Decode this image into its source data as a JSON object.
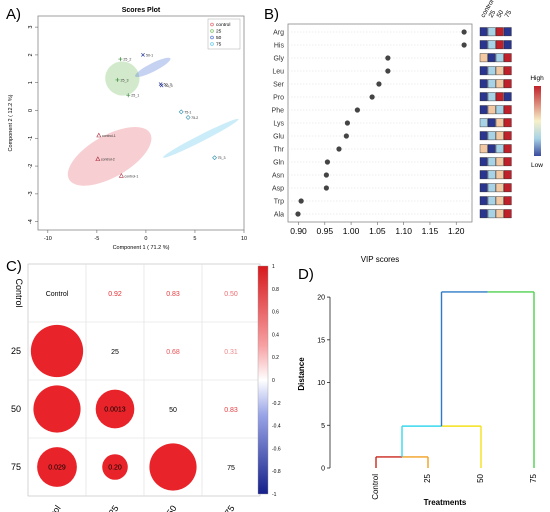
{
  "panels": {
    "a": {
      "letter": "A)"
    },
    "b": {
      "letter": "B)"
    },
    "c": {
      "letter": "C)"
    },
    "d": {
      "letter": "D)"
    }
  },
  "colors": {
    "control": "#e8737a",
    "g25": "#7ec46b",
    "g50": "#5c7fd6",
    "g75": "#69c8ee",
    "vip_high": "#c0202a",
    "vip_mid": "#f3c9a4",
    "vip_low_light": "#a8d3e6",
    "vip_low": "#2a3590",
    "corr_pos": "#e8242a",
    "corr_neg": "#1d2ea0",
    "dend_red": "#c8261c",
    "dend_orange": "#f0a020",
    "dend_yellow": "#f4e11a",
    "dend_cyan": "#38d8ee",
    "dend_blue": "#2e7ac6",
    "dend_green": "#4fd04f"
  },
  "chart_data": [
    {
      "id": "scores",
      "type": "scatter",
      "title": "Scores Plot",
      "xlabel": "Component 1 ( 71.2 %)",
      "ylabel": "Component 2 ( 12.2 %)",
      "xlim": [
        -11,
        10
      ],
      "ylim": [
        -4.3,
        3.4
      ],
      "xticks": [
        -10,
        -5,
        0,
        5,
        10
      ],
      "yticks": [
        -4,
        -3,
        -2,
        -1,
        0,
        1,
        2,
        3
      ],
      "legend": {
        "position": "top-right",
        "entries": [
          "control",
          "25",
          "50",
          "75"
        ]
      },
      "series": [
        {
          "name": "control",
          "color_key": "control",
          "marker": "triangle",
          "points": [
            {
              "x": -4.8,
              "y": -0.9,
              "label": "control-1"
            },
            {
              "x": -4.9,
              "y": -1.75,
              "label": "control-2"
            },
            {
              "x": -2.5,
              "y": -2.35,
              "label": "control-1"
            }
          ]
        },
        {
          "name": "25",
          "color_key": "g25",
          "marker": "plus",
          "points": [
            {
              "x": -2.6,
              "y": 1.85,
              "label": "25_2"
            },
            {
              "x": -2.9,
              "y": 1.1,
              "label": "25_3"
            },
            {
              "x": -1.8,
              "y": 0.55,
              "label": "25_1"
            }
          ]
        },
        {
          "name": "50",
          "color_key": "g50",
          "marker": "cross",
          "points": [
            {
              "x": -0.3,
              "y": 2.0,
              "label": "50-1"
            },
            {
              "x": 1.5,
              "y": 0.95,
              "label": "50_2"
            },
            {
              "x": 1.6,
              "y": 0.9,
              "label": "50_3"
            }
          ]
        },
        {
          "name": "75",
          "color_key": "g75",
          "marker": "diamond",
          "points": [
            {
              "x": 3.6,
              "y": -0.05,
              "label": "75-1"
            },
            {
              "x": 4.3,
              "y": -0.25,
              "label": "75-2"
            },
            {
              "x": 7.0,
              "y": -1.7,
              "label": "75_3"
            }
          ]
        }
      ]
    },
    {
      "id": "vip",
      "type": "scatter",
      "xlabel": "VIP scores",
      "xlim": [
        0.88,
        1.23
      ],
      "xticks": [
        0.9,
        0.95,
        1.0,
        1.05,
        1.1,
        1.15,
        1.2
      ],
      "categories": [
        "Arg",
        "His",
        "Gly",
        "Leu",
        "Ser",
        "Pro",
        "Phe",
        "Lys",
        "Glu",
        "Thr",
        "Gln",
        "Asn",
        "Asp",
        "Trp",
        "Ala"
      ],
      "values": [
        1.215,
        1.215,
        1.07,
        1.07,
        1.053,
        1.04,
        1.012,
        0.993,
        0.991,
        0.977,
        0.955,
        0.953,
        0.953,
        0.905,
        0.899
      ],
      "heatmap": {
        "columns": [
          "control",
          "25",
          "50",
          "75"
        ],
        "cells": [
          [
            "low",
            "lowlight",
            "high",
            "low"
          ],
          [
            "low",
            "lowlight",
            "high",
            "low"
          ],
          [
            "mid",
            "low",
            "lowlight",
            "high"
          ],
          [
            "low",
            "lowlight",
            "mid",
            "high"
          ],
          [
            "low",
            "lowlight",
            "mid",
            "high"
          ],
          [
            "low",
            "lowlight",
            "high",
            "low"
          ],
          [
            "low",
            "mid",
            "lowlight",
            "high"
          ],
          [
            "lowlight",
            "low",
            "mid",
            "high"
          ],
          [
            "low",
            "lowlight",
            "mid",
            "high"
          ],
          [
            "mid",
            "low",
            "lowlight",
            "high"
          ],
          [
            "low",
            "lowlight",
            "mid",
            "high"
          ],
          [
            "low",
            "lowlight",
            "mid",
            "high"
          ],
          [
            "low",
            "lowlight",
            "mid",
            "high"
          ],
          [
            "low",
            "lowlight",
            "mid",
            "high"
          ],
          [
            "low",
            "lowlight",
            "mid",
            "high"
          ]
        ],
        "colorbar": {
          "high": "High",
          "low": "Low"
        }
      }
    },
    {
      "id": "corr",
      "type": "heatmap",
      "labels": [
        "Control",
        "25",
        "50",
        "75"
      ],
      "matrix": [
        [
          1,
          0.92,
          0.83,
          0.5
        ],
        [
          0.92,
          1,
          0.68,
          0.31
        ],
        [
          0.83,
          0.68,
          1,
          0.83
        ],
        [
          0.5,
          0.31,
          0.83,
          1
        ]
      ],
      "lower_labels": [
        [
          null,
          null,
          null,
          null
        ],
        [
          "",
          null,
          null,
          null
        ],
        [
          "",
          "0.0013",
          null,
          null
        ],
        [
          "0.029",
          "0.20",
          "",
          null
        ]
      ],
      "lower_radius": [
        [
          null,
          null,
          null,
          null
        ],
        [
          0.92,
          null,
          null,
          null
        ],
        [
          0.83,
          0.68,
          null,
          null
        ],
        [
          0.7,
          0.45,
          0.83,
          null
        ]
      ],
      "upper_text": [
        [
          null,
          "0.92",
          "0.83",
          "0.50"
        ],
        [
          null,
          null,
          "0.68",
          "0.31"
        ],
        [
          null,
          null,
          null,
          "0.83"
        ],
        [
          null,
          null,
          null,
          null
        ]
      ],
      "colorbar_ticks": [
        1,
        0.8,
        0.6,
        0.4,
        0.2,
        0,
        -0.2,
        -0.4,
        -0.6,
        -0.8,
        -1
      ]
    },
    {
      "id": "dendro",
      "type": "dendrogram",
      "xlabel": "Treatments",
      "ylabel": "Distance",
      "ylim": [
        0,
        22
      ],
      "yticks": [
        0,
        5,
        10,
        15,
        20
      ],
      "leaves": [
        "Control",
        "25",
        "50",
        "75"
      ],
      "merges": [
        {
          "left": "Control",
          "right": "25",
          "height": 1.3
        },
        {
          "left": "Control+25",
          "right": "50",
          "height": 4.9
        },
        {
          "left": "Control+25+50",
          "right": "75",
          "height": 20.6
        }
      ]
    }
  ]
}
